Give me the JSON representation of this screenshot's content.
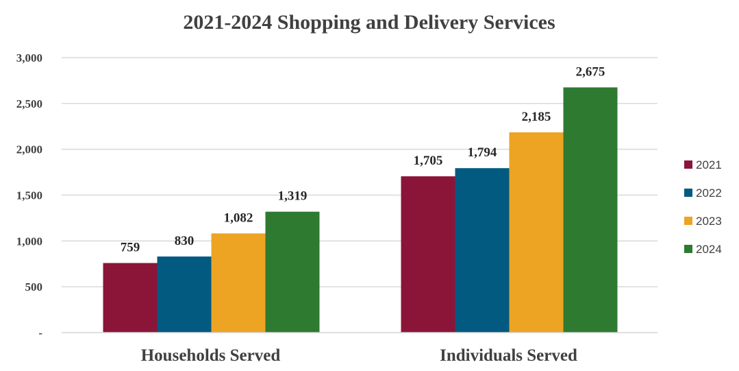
{
  "chart_data": {
    "type": "bar",
    "title": "2021-2024 Shopping and Delivery Services",
    "categories": [
      "Households Served",
      "Individuals Served"
    ],
    "series": [
      {
        "name": "2021",
        "color": "#8B1538",
        "values": [
          759,
          1705
        ],
        "labels": [
          "759",
          "1,705"
        ]
      },
      {
        "name": "2022",
        "color": "#035A81",
        "values": [
          830,
          1794
        ],
        "labels": [
          "830",
          "1,794"
        ]
      },
      {
        "name": "2023",
        "color": "#EDA423",
        "values": [
          1082,
          2185
        ],
        "labels": [
          "1,082",
          "2,185"
        ]
      },
      {
        "name": "2024",
        "color": "#2E7A31",
        "values": [
          1319,
          2675
        ],
        "labels": [
          "1,319",
          "2,675"
        ]
      }
    ],
    "ylim": [
      0,
      3000
    ],
    "yticks": [
      0,
      500,
      1000,
      1500,
      2000,
      2500,
      3000
    ],
    "ytick_labels": [
      "-",
      "500",
      "1,000",
      "1,500",
      "2,000",
      "2,500",
      "3,000"
    ],
    "xlabel": "",
    "ylabel": "",
    "grid": true,
    "legend": "right"
  }
}
